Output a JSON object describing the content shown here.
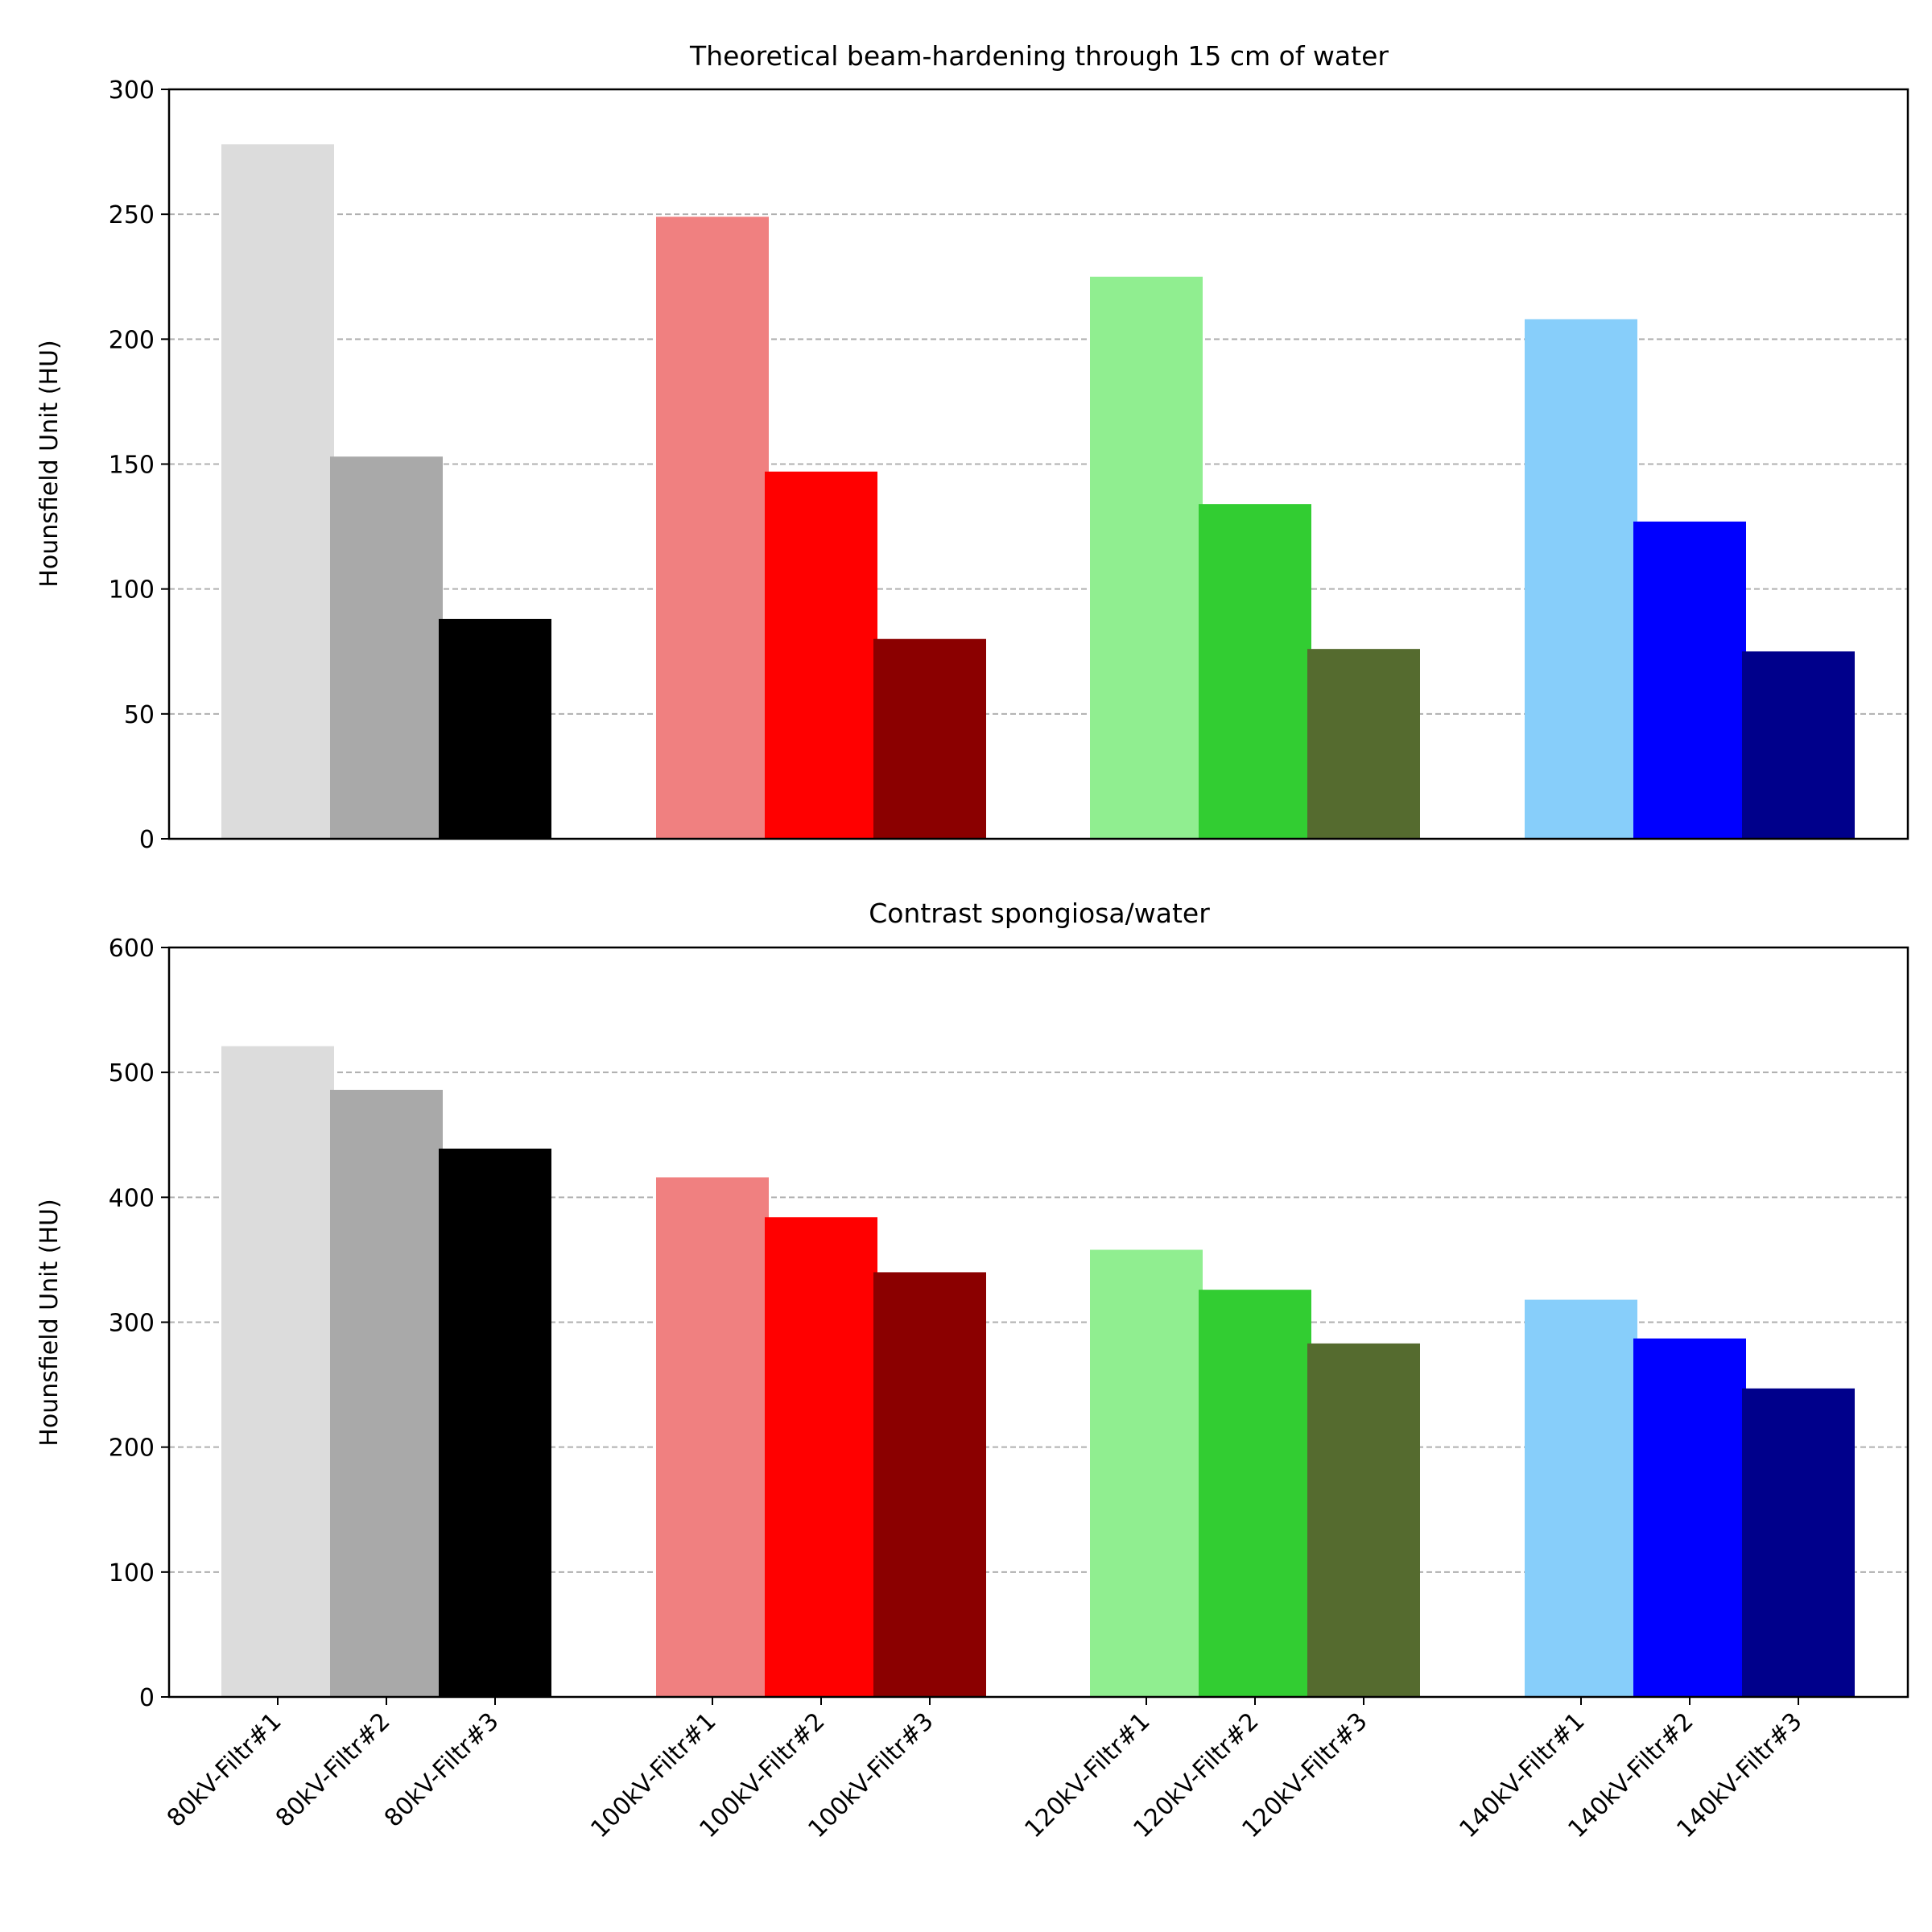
{
  "chart_data": [
    {
      "type": "bar",
      "title": "Theoretical beam-hardening through 15 cm of water",
      "xlabel": "",
      "ylabel": "Hounsfield Unit (HU)",
      "ylim": [
        0,
        300
      ],
      "yticks": [
        0,
        50,
        100,
        150,
        200,
        250,
        300
      ],
      "grid": "y-dashed",
      "categories": [
        "80kV-Filtr#1",
        "80kV-Filtr#2",
        "80kV-Filtr#3",
        "100kV-Filtr#1",
        "100kV-Filtr#2",
        "100kV-Filtr#3",
        "120kV-Filtr#1",
        "120kV-Filtr#2",
        "120kV-Filtr#3",
        "140kV-Filtr#1",
        "140kV-Filtr#2",
        "140kV-Filtr#3"
      ],
      "values": [
        278,
        153,
        88,
        249,
        147,
        80,
        225,
        134,
        76,
        208,
        127,
        75
      ],
      "colors": [
        "#dcdcdc",
        "#a9a9a9",
        "#000000",
        "#f08080",
        "#ff0000",
        "#8b0000",
        "#90ee90",
        "#32cd32",
        "#556b2f",
        "#87cefa",
        "#0000ff",
        "#00008b"
      ],
      "show_xticklabels": false
    },
    {
      "type": "bar",
      "title": "Contrast spongiosa/water",
      "xlabel": "",
      "ylabel": "Hounsfield Unit (HU)",
      "ylim": [
        0,
        600
      ],
      "yticks": [
        0,
        100,
        200,
        300,
        400,
        500,
        600
      ],
      "grid": "y-dashed",
      "categories": [
        "80kV-Filtr#1",
        "80kV-Filtr#2",
        "80kV-Filtr#3",
        "100kV-Filtr#1",
        "100kV-Filtr#2",
        "100kV-Filtr#3",
        "120kV-Filtr#1",
        "120kV-Filtr#2",
        "120kV-Filtr#3",
        "140kV-Filtr#1",
        "140kV-Filtr#2",
        "140kV-Filtr#3"
      ],
      "values": [
        521,
        486,
        439,
        416,
        384,
        340,
        358,
        326,
        283,
        318,
        287,
        247
      ],
      "colors": [
        "#dcdcdc",
        "#a9a9a9",
        "#000000",
        "#f08080",
        "#ff0000",
        "#8b0000",
        "#90ee90",
        "#32cd32",
        "#556b2f",
        "#87cefa",
        "#0000ff",
        "#00008b"
      ],
      "show_xticklabels": true
    }
  ]
}
